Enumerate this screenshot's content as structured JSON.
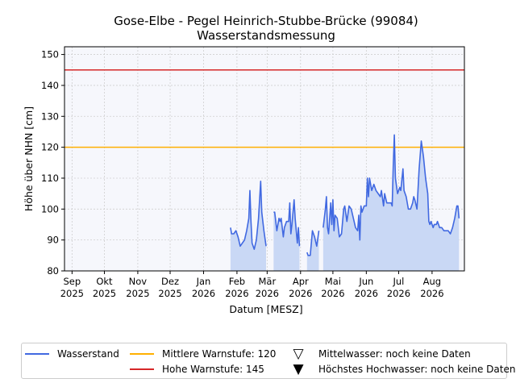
{
  "chart_data": {
    "type": "area",
    "title_line1": "Gose-Elbe - Pegel Heinrich-Stubbe-Brücke (99084)",
    "title_line2": "Wasserstandsmessung",
    "xlabel": "Datum [MESZ]",
    "ylabel": "Höhe über NHN [cm]",
    "ylim": [
      80,
      152.5
    ],
    "yticks": [
      80,
      90,
      100,
      110,
      120,
      130,
      140,
      150
    ],
    "xlim": [
      "2025-08-25",
      "2026-08-31"
    ],
    "xticks": [
      {
        "date": "2025-09-01",
        "month": "Sep",
        "year": "2025"
      },
      {
        "date": "2025-10-01",
        "month": "Okt",
        "year": "2025"
      },
      {
        "date": "2025-11-01",
        "month": "Nov",
        "year": "2025"
      },
      {
        "date": "2025-12-01",
        "month": "Dez",
        "year": "2025"
      },
      {
        "date": "2026-01-01",
        "month": "Jan",
        "year": "2026"
      },
      {
        "date": "2026-02-01",
        "month": "Feb",
        "year": "2026"
      },
      {
        "date": "2026-03-01",
        "month": "Mär",
        "year": "2026"
      },
      {
        "date": "2026-04-01",
        "month": "Apr",
        "year": "2026"
      },
      {
        "date": "2026-05-01",
        "month": "Mai",
        "year": "2026"
      },
      {
        "date": "2026-06-01",
        "month": "Jun",
        "year": "2026"
      },
      {
        "date": "2026-07-01",
        "month": "Jul",
        "year": "2026"
      },
      {
        "date": "2026-08-01",
        "month": "Aug",
        "year": "2026"
      }
    ],
    "grid": true,
    "legend_position": "bottom",
    "colors": {
      "series": "#4169e1",
      "fill": "#c9d8f5",
      "mittlere": "#ffb000",
      "hohe": "#d62728",
      "plot_bg": "#f6f7fc"
    },
    "thresholds": [
      {
        "name": "Mittlere Warnstufe: 120",
        "value": 120,
        "color": "#ffb000"
      },
      {
        "name": "Hohe Warnstufe: 145",
        "value": 145,
        "color": "#d62728"
      }
    ],
    "series": [
      {
        "name": "Wasserstand",
        "segments": [
          [
            [
              "2026-01-26",
              94
            ],
            [
              "2026-01-27",
              92
            ],
            [
              "2026-01-29",
              92
            ],
            [
              "2026-01-31",
              93
            ],
            [
              "2026-02-02",
              91
            ],
            [
              "2026-02-04",
              88
            ],
            [
              "2026-02-06",
              89
            ],
            [
              "2026-02-08",
              90
            ],
            [
              "2026-02-10",
              93
            ],
            [
              "2026-02-12",
              97
            ],
            [
              "2026-02-13",
              106
            ],
            [
              "2026-02-14",
              96
            ],
            [
              "2026-02-15",
              89
            ],
            [
              "2026-02-17",
              87
            ],
            [
              "2026-02-19",
              90
            ],
            [
              "2026-02-21",
              97
            ],
            [
              "2026-02-23",
              109
            ],
            [
              "2026-02-24",
              99
            ],
            [
              "2026-02-26",
              93
            ],
            [
              "2026-02-28",
              88
            ]
          ],
          [
            [
              "2026-03-07",
              99
            ],
            [
              "2026-03-08",
              99
            ],
            [
              "2026-03-09",
              96
            ],
            [
              "2026-03-10",
              93
            ],
            [
              "2026-03-12",
              97
            ],
            [
              "2026-03-13",
              96
            ],
            [
              "2026-03-14",
              97
            ],
            [
              "2026-03-16",
              91
            ],
            [
              "2026-03-17",
              94
            ],
            [
              "2026-03-19",
              96
            ],
            [
              "2026-03-21",
              96
            ],
            [
              "2026-03-22",
              102
            ],
            [
              "2026-03-23",
              92
            ],
            [
              "2026-03-24",
              95
            ],
            [
              "2026-03-26",
              103
            ],
            [
              "2026-03-27",
              97
            ],
            [
              "2026-03-28",
              93
            ],
            [
              "2026-03-29",
              89
            ],
            [
              "2026-03-30",
              94
            ],
            [
              "2026-03-31",
              88
            ]
          ],
          [
            [
              "2026-04-07",
              86
            ],
            [
              "2026-04-08",
              85
            ],
            [
              "2026-04-10",
              85
            ],
            [
              "2026-04-12",
              93
            ],
            [
              "2026-04-14",
              91
            ],
            [
              "2026-04-16",
              88
            ],
            [
              "2026-04-18",
              93
            ]
          ],
          [
            [
              "2026-04-22",
              94
            ],
            [
              "2026-04-24",
              100
            ],
            [
              "2026-04-25",
              104
            ],
            [
              "2026-04-26",
              94
            ],
            [
              "2026-04-27",
              92
            ],
            [
              "2026-04-29",
              102
            ],
            [
              "2026-04-30",
              95
            ],
            [
              "2026-05-01",
              103
            ],
            [
              "2026-05-02",
              93
            ],
            [
              "2026-05-03",
              98
            ],
            [
              "2026-05-05",
              97
            ],
            [
              "2026-05-07",
              91
            ],
            [
              "2026-05-09",
              92
            ],
            [
              "2026-05-11",
              100
            ],
            [
              "2026-05-12",
              101
            ],
            [
              "2026-05-14",
              96
            ],
            [
              "2026-05-16",
              101
            ],
            [
              "2026-05-18",
              100
            ],
            [
              "2026-05-20",
              97
            ],
            [
              "2026-05-22",
              94
            ],
            [
              "2026-05-24",
              93
            ],
            [
              "2026-05-25",
              98
            ],
            [
              "2026-05-26",
              90
            ],
            [
              "2026-05-27",
              101
            ],
            [
              "2026-05-28",
              99
            ],
            [
              "2026-05-30",
              101
            ],
            [
              "2026-06-01",
              101
            ],
            [
              "2026-06-02",
              110
            ],
            [
              "2026-06-03",
              104
            ],
            [
              "2026-06-04",
              110
            ],
            [
              "2026-06-06",
              106
            ],
            [
              "2026-06-08",
              108
            ],
            [
              "2026-06-10",
              106
            ],
            [
              "2026-06-12",
              105
            ],
            [
              "2026-06-14",
              104
            ],
            [
              "2026-06-15",
              106
            ],
            [
              "2026-06-17",
              101
            ],
            [
              "2026-06-18",
              105
            ],
            [
              "2026-06-20",
              102
            ],
            [
              "2026-06-22",
              102
            ],
            [
              "2026-06-24",
              102
            ],
            [
              "2026-06-25",
              101
            ],
            [
              "2026-06-26",
              114
            ],
            [
              "2026-06-27",
              124
            ],
            [
              "2026-06-28",
              110
            ],
            [
              "2026-06-30",
              105
            ],
            [
              "2026-07-02",
              107
            ],
            [
              "2026-07-03",
              106
            ],
            [
              "2026-07-05",
              113
            ],
            [
              "2026-07-06",
              106
            ],
            [
              "2026-07-08",
              104
            ],
            [
              "2026-07-10",
              100
            ],
            [
              "2026-07-12",
              100
            ],
            [
              "2026-07-14",
              102
            ],
            [
              "2026-07-15",
              104
            ],
            [
              "2026-07-16",
              103
            ],
            [
              "2026-07-18",
              100
            ],
            [
              "2026-07-20",
              113
            ],
            [
              "2026-07-22",
              122
            ],
            [
              "2026-07-24",
              117
            ],
            [
              "2026-07-26",
              110
            ],
            [
              "2026-07-28",
              105
            ],
            [
              "2026-07-29",
              96
            ],
            [
              "2026-07-30",
              95
            ],
            [
              "2026-07-31",
              96
            ],
            [
              "2026-08-02",
              94
            ],
            [
              "2026-08-03",
              95
            ],
            [
              "2026-08-05",
              95
            ],
            [
              "2026-08-06",
              96
            ],
            [
              "2026-08-08",
              94
            ],
            [
              "2026-08-10",
              94
            ],
            [
              "2026-08-12",
              93
            ],
            [
              "2026-08-14",
              93
            ],
            [
              "2026-08-16",
              93
            ],
            [
              "2026-08-18",
              92
            ],
            [
              "2026-08-20",
              94
            ],
            [
              "2026-08-22",
              97
            ],
            [
              "2026-08-24",
              101
            ],
            [
              "2026-08-25",
              101
            ],
            [
              "2026-08-26",
              97
            ]
          ]
        ]
      }
    ]
  },
  "legend": {
    "wasserstand": "Wasserstand",
    "mittlere": "Mittlere Warnstufe: 120",
    "hohe": "Hohe Warnstufe: 145",
    "mittelwasser": "Mittelwasser: noch keine Daten",
    "hochwasser": "Höchstes Hochwasser: noch keine Daten",
    "mittelwasser_icon": "triangle-down-outline-icon",
    "hochwasser_icon": "triangle-down-filled-icon"
  }
}
